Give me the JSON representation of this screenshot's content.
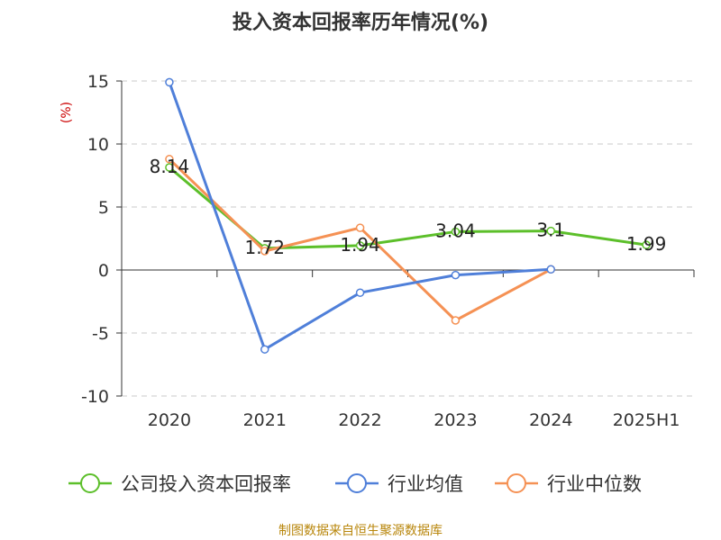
{
  "chart_data": {
    "type": "line",
    "title": "投入资本回报率历年情况(%)",
    "ylabel": "(%)",
    "categories": [
      "2020",
      "2021",
      "2022",
      "2023",
      "2024",
      "2025H1"
    ],
    "ylim": [
      -10,
      15
    ],
    "yticks": [
      15,
      10,
      5,
      0,
      -5,
      -10
    ],
    "grid": true,
    "legend_position": "bottom",
    "series": [
      {
        "name": "公司投入资本回报率",
        "color": "#5cbf2a",
        "values": [
          8.14,
          1.72,
          1.94,
          3.04,
          3.1,
          1.99
        ],
        "data_labels": [
          "8.14",
          "1.72",
          "1.94",
          "3.04",
          "3.1",
          "1.99"
        ]
      },
      {
        "name": "行业均值",
        "color": "#4f7fd9",
        "values": [
          14.9,
          -6.3,
          -1.8,
          -0.4,
          0.05,
          null
        ]
      },
      {
        "name": "行业中位数",
        "color": "#f59154",
        "values": [
          8.8,
          1.5,
          3.35,
          -4.0,
          0.05,
          null
        ]
      }
    ],
    "source": "制图数据来自恒生聚源数据库"
  }
}
